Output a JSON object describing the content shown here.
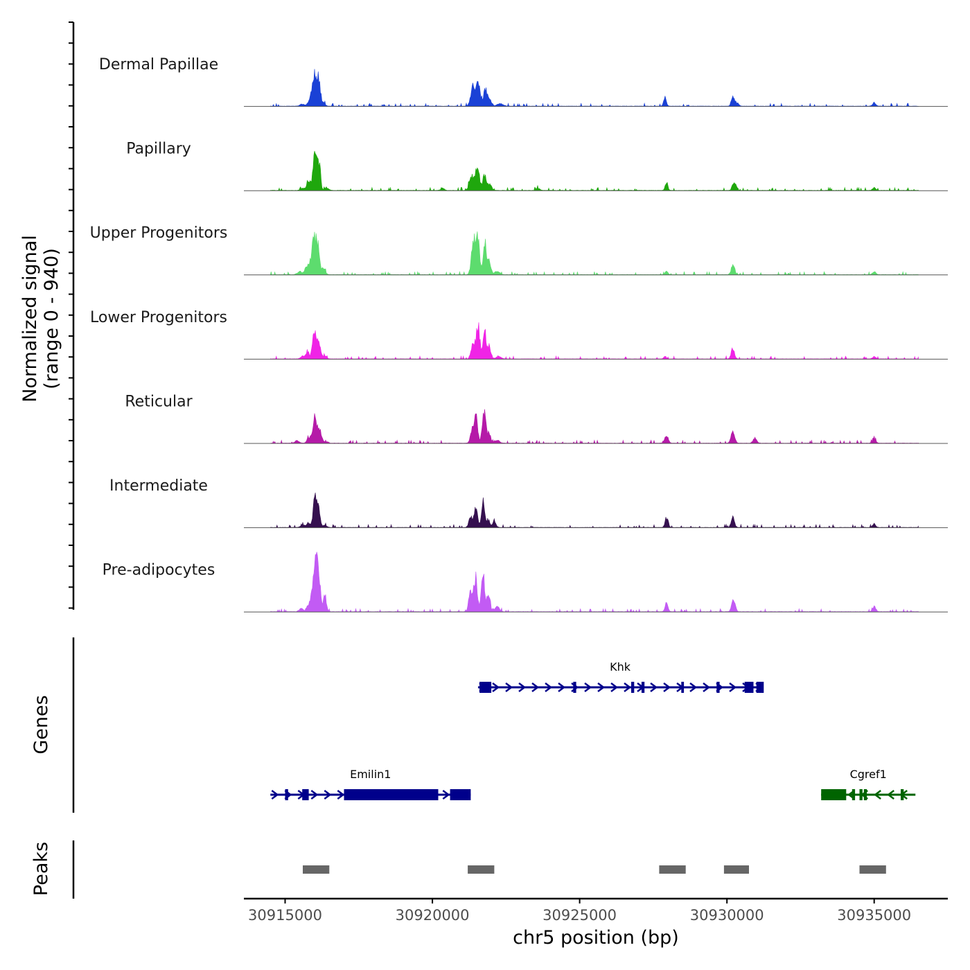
{
  "chart_data": {
    "type": "area",
    "title": "",
    "xlabel": "chr5 position (bp)",
    "ylabel_line1": "Normalized signal",
    "ylabel_line2": "(range 0 - 940)",
    "ylim": [
      0,
      940
    ],
    "xlim": [
      30913600,
      30937500
    ],
    "x_ticks": [
      30915000,
      30920000,
      30925000,
      30930000,
      30935000
    ],
    "x_tick_labels": [
      "30915000",
      "30920000",
      "30925000",
      "30930000",
      "30935000"
    ],
    "panel_titles": {
      "genes": "Genes",
      "peaks": "Peaks"
    },
    "series": [
      {
        "name": "Dermal Papillae",
        "color": "#1a41d6",
        "peaks": [
          [
            30915580,
            35,
            70
          ],
          [
            30915800,
            40,
            60
          ],
          [
            30916000,
            560,
            90
          ],
          [
            30916150,
            330,
            50
          ],
          [
            30916300,
            60,
            60
          ],
          [
            30921370,
            320,
            70
          ],
          [
            30921550,
            370,
            70
          ],
          [
            30921800,
            280,
            60
          ],
          [
            30921950,
            110,
            60
          ],
          [
            30922300,
            40,
            100
          ],
          [
            30927900,
            150,
            45
          ],
          [
            30930200,
            180,
            50
          ],
          [
            30930350,
            60,
            50
          ],
          [
            30935000,
            60,
            55
          ]
        ]
      },
      {
        "name": "Papillary",
        "color": "#1fa70d",
        "peaks": [
          [
            30915600,
            40,
            70
          ],
          [
            30915800,
            170,
            60
          ],
          [
            30916020,
            620,
            70
          ],
          [
            30916160,
            400,
            45
          ],
          [
            30916400,
            40,
            70
          ],
          [
            30921320,
            230,
            70
          ],
          [
            30921520,
            420,
            70
          ],
          [
            30921770,
            250,
            60
          ],
          [
            30921950,
            100,
            60
          ],
          [
            30920350,
            40,
            60
          ],
          [
            30923600,
            30,
            60
          ],
          [
            30927950,
            130,
            45
          ],
          [
            30930250,
            150,
            60
          ],
          [
            30935000,
            50,
            55
          ]
        ]
      },
      {
        "name": "Upper Progenitors",
        "color": "#5ddc6e",
        "peaks": [
          [
            30915500,
            50,
            80
          ],
          [
            30915750,
            160,
            70
          ],
          [
            30915960,
            560,
            70
          ],
          [
            30916100,
            480,
            60
          ],
          [
            30916300,
            120,
            60
          ],
          [
            30921400,
            580,
            70
          ],
          [
            30921550,
            540,
            60
          ],
          [
            30921770,
            560,
            50
          ],
          [
            30921920,
            240,
            60
          ],
          [
            30922200,
            60,
            80
          ],
          [
            30927950,
            60,
            45
          ],
          [
            30930200,
            140,
            60
          ],
          [
            30935000,
            50,
            55
          ]
        ]
      },
      {
        "name": "Lower Progenitors",
        "color": "#f024e6",
        "peaks": [
          [
            30915600,
            50,
            70
          ],
          [
            30915760,
            130,
            50
          ],
          [
            30916000,
            450,
            70
          ],
          [
            30916150,
            240,
            60
          ],
          [
            30916350,
            50,
            60
          ],
          [
            30921380,
            300,
            60
          ],
          [
            30921550,
            560,
            60
          ],
          [
            30921770,
            490,
            55
          ],
          [
            30921930,
            200,
            60
          ],
          [
            30922250,
            50,
            80
          ],
          [
            30927900,
            50,
            45
          ],
          [
            30930200,
            170,
            55
          ],
          [
            30935000,
            40,
            55
          ]
        ]
      },
      {
        "name": "Reticular",
        "color": "#b51aa8",
        "peaks": [
          [
            30915400,
            40,
            70
          ],
          [
            30915800,
            90,
            60
          ],
          [
            30916020,
            440,
            75
          ],
          [
            30916200,
            180,
            55
          ],
          [
            30916400,
            30,
            60
          ],
          [
            30921350,
            220,
            60
          ],
          [
            30921480,
            400,
            60
          ],
          [
            30921750,
            500,
            60
          ],
          [
            30921920,
            140,
            60
          ],
          [
            30922200,
            50,
            80
          ],
          [
            30927950,
            120,
            60
          ],
          [
            30930200,
            200,
            60
          ],
          [
            30930950,
            90,
            60
          ],
          [
            30935000,
            80,
            55
          ]
        ]
      },
      {
        "name": "Intermediate",
        "color": "#35104f",
        "peaks": [
          [
            30915600,
            40,
            70
          ],
          [
            30915780,
            80,
            50
          ],
          [
            30916020,
            500,
            65
          ],
          [
            30916150,
            250,
            50
          ],
          [
            30916350,
            40,
            60
          ],
          [
            30921300,
            170,
            60
          ],
          [
            30921470,
            360,
            55
          ],
          [
            30921720,
            470,
            55
          ],
          [
            30921900,
            120,
            55
          ],
          [
            30922100,
            90,
            60
          ],
          [
            30927950,
            150,
            50
          ],
          [
            30930200,
            170,
            55
          ],
          [
            30935000,
            60,
            50
          ]
        ]
      },
      {
        "name": "Pre-adipocytes",
        "color": "#c25bf4",
        "peaks": [
          [
            30915550,
            60,
            70
          ],
          [
            30915800,
            120,
            60
          ],
          [
            30916020,
            830,
            80
          ],
          [
            30916150,
            450,
            60
          ],
          [
            30916350,
            260,
            50
          ],
          [
            30921300,
            360,
            60
          ],
          [
            30921470,
            560,
            60
          ],
          [
            30921720,
            630,
            55
          ],
          [
            30921900,
            260,
            60
          ],
          [
            30922200,
            80,
            80
          ],
          [
            30927950,
            150,
            50
          ],
          [
            30930220,
            200,
            60
          ],
          [
            30935000,
            90,
            55
          ]
        ]
      }
    ],
    "genes": [
      {
        "name": "Emilin1",
        "color": "#00008b",
        "strand": "+",
        "start": 30914500,
        "end": 30921300,
        "row": 2,
        "exons": [
          [
            30915000,
            30915100
          ],
          [
            30915580,
            30915800
          ],
          [
            30917000,
            30920200
          ],
          [
            30920600,
            30921300
          ]
        ]
      },
      {
        "name": "Khk",
        "color": "#00008b",
        "strand": "+",
        "start": 30921550,
        "end": 30931200,
        "row": 1,
        "exons": [
          [
            30921600,
            30922000
          ],
          [
            30924780,
            30924880
          ],
          [
            30926750,
            30926850
          ],
          [
            30927100,
            30927200
          ],
          [
            30928450,
            30928540
          ],
          [
            30929650,
            30929750
          ],
          [
            30930600,
            30930900
          ],
          [
            30931000,
            30931250
          ]
        ]
      },
      {
        "name": "Cgref1",
        "color": "#006400",
        "strand": "-",
        "start": 30933200,
        "end": 30936400,
        "row": 2,
        "exons": [
          [
            30933200,
            30934050
          ],
          [
            30934250,
            30934350
          ],
          [
            30934500,
            30934600
          ],
          [
            30934650,
            30934750
          ],
          [
            30935900,
            30936000
          ]
        ]
      }
    ],
    "peaks": [
      [
        30915600,
        30916500
      ],
      [
        30921200,
        30922100
      ],
      [
        30927700,
        30928600
      ],
      [
        30929900,
        30930750
      ],
      [
        30934500,
        30935400
      ]
    ]
  }
}
